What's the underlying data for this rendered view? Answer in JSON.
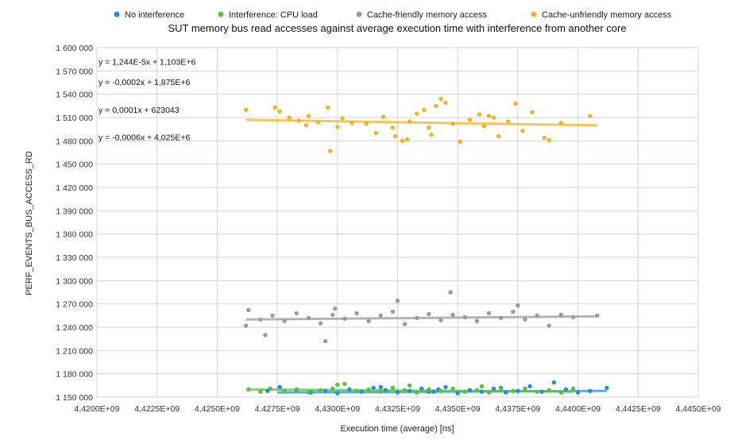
{
  "chart_data": {
    "type": "scatter",
    "title": "SUT memory bus read accesses against average execution time with interference from another core",
    "xlabel": "Execution time (average) [ns]",
    "ylabel": "PERF_EVENTS_BUS_ACCESS_RD",
    "xlim": [
      4420000000,
      4445000000
    ],
    "ylim": [
      1150000,
      1600000
    ],
    "grid": true,
    "legend_placement": "top",
    "x_ticks": [
      4420000000,
      4422500000,
      4425000000,
      4427500000,
      4430000000,
      4432500000,
      4435000000,
      4437500000,
      4440000000,
      4442500000,
      4445000000
    ],
    "x_tick_labels": [
      "4,4200E+09",
      "4,4225E+09",
      "4,4250E+09",
      "4,4275E+09",
      "4,4300E+09",
      "4,4325E+09",
      "4,4350E+09",
      "4,4375E+09",
      "4,4400E+09",
      "4,4425E+09",
      "4,4450E+09"
    ],
    "y_ticks": [
      1150000,
      1180000,
      1210000,
      1240000,
      1270000,
      1300000,
      1330000,
      1360000,
      1390000,
      1420000,
      1450000,
      1480000,
      1510000,
      1540000,
      1570000,
      1600000
    ],
    "y_tick_labels": [
      "1 150 000",
      "1 180 000",
      "1 210 000",
      "1 240 000",
      "1 270 000",
      "1 300 000",
      "1 330 000",
      "1 360 000",
      "1 390 000",
      "1 420 000",
      "1 450 000",
      "1 480 000",
      "1 510 000",
      "1 540 000",
      "1 570 000",
      "1 600 000"
    ],
    "trendline_equations": [
      {
        "label": "y = 1,244E-5x + 1,103E+6",
        "y": 1582000
      },
      {
        "label": "y = -0,0002x + 1,875E+6",
        "y": 1556000
      },
      {
        "label": "y = 0,0001x + 623043",
        "y": 1520000
      },
      {
        "label": "y = -0,0006x + 4,025E+6",
        "y": 1485000
      }
    ],
    "series": [
      {
        "name": "No interference",
        "color": "#1f8fe6",
        "trend": {
          "x": [
            4427500000,
            4441200000
          ],
          "y": [
            1156000,
            1158000
          ]
        },
        "points": [
          [
            4427100000,
            1158000
          ],
          [
            4427600000,
            1163000
          ],
          [
            4428300000,
            1159000
          ],
          [
            4428900000,
            1156000
          ],
          [
            4429500000,
            1158000
          ],
          [
            4430000000,
            1155000
          ],
          [
            4430500000,
            1160000
          ],
          [
            4431000000,
            1157000
          ],
          [
            4431500000,
            1162000
          ],
          [
            4432000000,
            1159000
          ],
          [
            4432500000,
            1156000
          ],
          [
            4433000000,
            1158000
          ],
          [
            4433500000,
            1161000
          ],
          [
            4434000000,
            1157000
          ],
          [
            4434500000,
            1163000
          ],
          [
            4435000000,
            1155000
          ],
          [
            4435500000,
            1159000
          ],
          [
            4436000000,
            1157000
          ],
          [
            4436500000,
            1161000
          ],
          [
            4437000000,
            1156000
          ],
          [
            4437500000,
            1158000
          ],
          [
            4438000000,
            1164000
          ],
          [
            4438500000,
            1157000
          ],
          [
            4439000000,
            1169000
          ],
          [
            4439500000,
            1160000
          ],
          [
            4440000000,
            1156000
          ],
          [
            4440500000,
            1158000
          ],
          [
            4441200000,
            1162000
          ],
          [
            4431800000,
            1163000
          ],
          [
            4434200000,
            1160000
          ],
          [
            4436800000,
            1162000
          ],
          [
            4433800000,
            1157000
          ]
        ]
      },
      {
        "name": "Interference: CPU load",
        "color": "#58c33a",
        "trend": {
          "x": [
            4426300000,
            4439800000
          ],
          "y": [
            1160000,
            1157000
          ]
        },
        "points": [
          [
            4426300000,
            1160000
          ],
          [
            4426800000,
            1157000
          ],
          [
            4427200000,
            1161000
          ],
          [
            4427800000,
            1158000
          ],
          [
            4428300000,
            1160000
          ],
          [
            4428800000,
            1156000
          ],
          [
            4429300000,
            1159000
          ],
          [
            4429800000,
            1161000
          ],
          [
            4430000000,
            1166000
          ],
          [
            4430300000,
            1167000
          ],
          [
            4430800000,
            1158000
          ],
          [
            4431300000,
            1160000
          ],
          [
            4431800000,
            1157000
          ],
          [
            4432300000,
            1162000
          ],
          [
            4432800000,
            1159000
          ],
          [
            4433300000,
            1156000
          ],
          [
            4433800000,
            1160000
          ],
          [
            4434300000,
            1158000
          ],
          [
            4434800000,
            1161000
          ],
          [
            4435300000,
            1157000
          ],
          [
            4435800000,
            1159000
          ],
          [
            4436300000,
            1156000
          ],
          [
            4436800000,
            1160000
          ],
          [
            4437300000,
            1158000
          ],
          [
            4437800000,
            1161000
          ],
          [
            4438300000,
            1157000
          ],
          [
            4438800000,
            1159000
          ],
          [
            4439300000,
            1156000
          ],
          [
            4439800000,
            1161000
          ],
          [
            4433000000,
            1165000
          ],
          [
            4436000000,
            1164000
          ]
        ]
      },
      {
        "name": "Cache-friendly memory access",
        "color": "#9b9b9b",
        "trend": {
          "x": [
            4426200000,
            4440800000
          ],
          "y": [
            1250000,
            1254000
          ]
        },
        "points": [
          [
            4426200000,
            1242000
          ],
          [
            4426300000,
            1262000
          ],
          [
            4426800000,
            1250000
          ],
          [
            4427300000,
            1255000
          ],
          [
            4427800000,
            1248000
          ],
          [
            4428300000,
            1258000
          ],
          [
            4428800000,
            1252000
          ],
          [
            4429300000,
            1245000
          ],
          [
            4429500000,
            1222000
          ],
          [
            4429800000,
            1256000
          ],
          [
            4429900000,
            1264000
          ],
          [
            4430300000,
            1251000
          ],
          [
            4430800000,
            1258000
          ],
          [
            4431300000,
            1248000
          ],
          [
            4431800000,
            1255000
          ],
          [
            4432300000,
            1260000
          ],
          [
            4432500000,
            1274000
          ],
          [
            4432800000,
            1244000
          ],
          [
            4433300000,
            1252000
          ],
          [
            4433800000,
            1257000
          ],
          [
            4434300000,
            1249000
          ],
          [
            4434700000,
            1285000
          ],
          [
            4434800000,
            1256000
          ],
          [
            4435300000,
            1253000
          ],
          [
            4435800000,
            1248000
          ],
          [
            4436300000,
            1258000
          ],
          [
            4436800000,
            1252000
          ],
          [
            4437300000,
            1260000
          ],
          [
            4437500000,
            1268000
          ],
          [
            4437800000,
            1250000
          ],
          [
            4438300000,
            1255000
          ],
          [
            4438800000,
            1242000
          ],
          [
            4439300000,
            1256000
          ],
          [
            4439800000,
            1253000
          ],
          [
            4440800000,
            1255000
          ],
          [
            4427000000,
            1230000
          ]
        ]
      },
      {
        "name": "Cache-unfriendly memory access",
        "color": "#f0b323",
        "trend": {
          "x": [
            4426200000,
            4440800000
          ],
          "y": [
            1507000,
            1500000
          ]
        },
        "points": [
          [
            4426200000,
            1520000
          ],
          [
            4427400000,
            1523000
          ],
          [
            4427600000,
            1518000
          ],
          [
            4428000000,
            1510000
          ],
          [
            4428400000,
            1506000
          ],
          [
            4428800000,
            1512000
          ],
          [
            4429200000,
            1504000
          ],
          [
            4429600000,
            1523000
          ],
          [
            4429700000,
            1467000
          ],
          [
            4430200000,
            1509000
          ],
          [
            4430600000,
            1503000
          ],
          [
            4431200000,
            1502000
          ],
          [
            4431600000,
            1490000
          ],
          [
            4431900000,
            1511000
          ],
          [
            4432300000,
            1497000
          ],
          [
            4432400000,
            1486000
          ],
          [
            4432700000,
            1480000
          ],
          [
            4432900000,
            1482000
          ],
          [
            4433000000,
            1505000
          ],
          [
            4433300000,
            1515000
          ],
          [
            4433600000,
            1520000
          ],
          [
            4433800000,
            1497000
          ],
          [
            4434100000,
            1525000
          ],
          [
            4434300000,
            1534000
          ],
          [
            4434500000,
            1529000
          ],
          [
            4434800000,
            1502000
          ],
          [
            4435100000,
            1479000
          ],
          [
            4435500000,
            1507000
          ],
          [
            4435900000,
            1514000
          ],
          [
            4436300000,
            1512000
          ],
          [
            4436700000,
            1486000
          ],
          [
            4437100000,
            1505000
          ],
          [
            4437400000,
            1528000
          ],
          [
            4437700000,
            1493000
          ],
          [
            4438100000,
            1517000
          ],
          [
            4438600000,
            1484000
          ],
          [
            4438800000,
            1481000
          ],
          [
            4439300000,
            1503000
          ],
          [
            4440500000,
            1512000
          ],
          [
            4436100000,
            1499000
          ],
          [
            4436500000,
            1510000
          ],
          [
            4433900000,
            1488000
          ],
          [
            4430000000,
            1498000
          ],
          [
            4428700000,
            1500000
          ]
        ]
      }
    ]
  }
}
